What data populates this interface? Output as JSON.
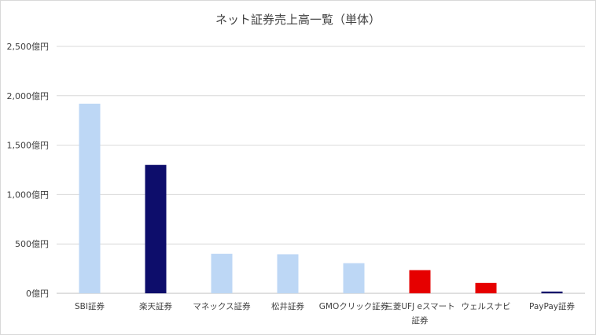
{
  "chart_data": {
    "type": "bar",
    "title": "ネット証券売上高一覧（単体）",
    "xlabel": "",
    "ylabel": "",
    "ylim": [
      0,
      2500
    ],
    "y_ticks": [
      0,
      500,
      1000,
      1500,
      2000,
      2500
    ],
    "y_tick_labels": [
      "0億円",
      "500億円",
      "1,000億円",
      "1,500億円",
      "2,000億円",
      "2,500億円"
    ],
    "grid": true,
    "legend": "none",
    "categories": [
      [
        "SBI証券"
      ],
      [
        "楽天証券"
      ],
      [
        "マネックス証券"
      ],
      [
        "松井証券"
      ],
      [
        "GMOクリック証券"
      ],
      [
        "三菱UFJ eスマート",
        "証券"
      ],
      [
        "ウェルスナビ"
      ],
      [
        "PayPay証券"
      ]
    ],
    "values": [
      1920,
      1300,
      400,
      395,
      305,
      235,
      105,
      18
    ],
    "colors": [
      "#bdd7f5",
      "#0d0d6b",
      "#bdd7f5",
      "#bdd7f5",
      "#bdd7f5",
      "#e60000",
      "#e60000",
      "#0d0d6b"
    ]
  }
}
